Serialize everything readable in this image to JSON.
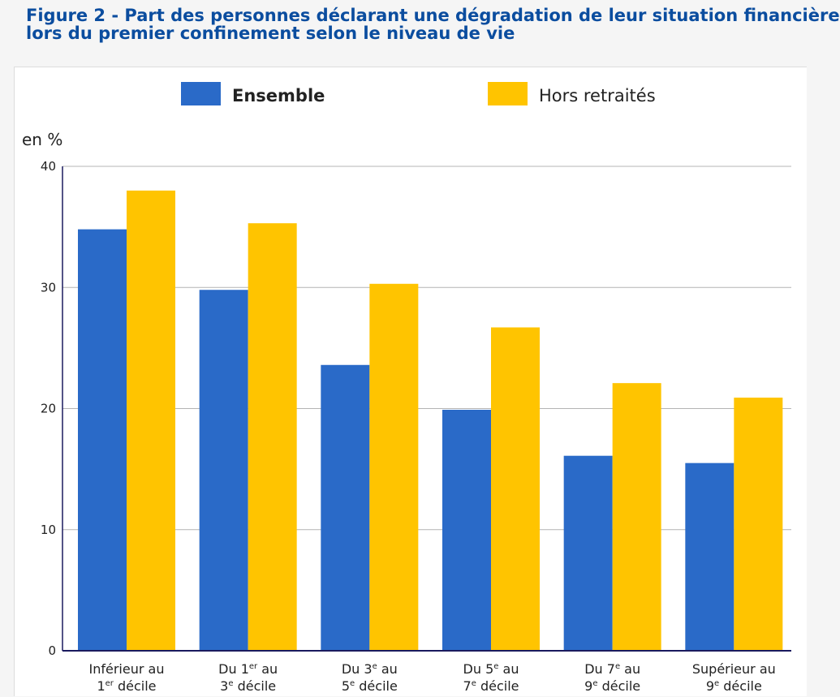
{
  "title": {
    "line1": "Figure 2 - Part des personnes déclarant une dégradation de leur situation financière",
    "line2": "lors du premier confinement selon le niveau de vie"
  },
  "colors": {
    "ensemble": "#2a6ac8",
    "hors_retraites": "#ffc400",
    "grid": "#b4b4b4",
    "axis": "#1a1a5e"
  },
  "chart_data": {
    "type": "bar",
    "ylabel": "en %",
    "ylim": [
      0,
      40
    ],
    "yticks": [
      "0",
      "10",
      "20",
      "30",
      "40"
    ],
    "grid": true,
    "legend_position": "top",
    "categories": [
      {
        "lines": [
          [
            {
              "t": "Inférieur au"
            }
          ],
          [
            {
              "t": "1"
            },
            {
              "t": "er",
              "sup": true
            },
            {
              "t": " décile"
            }
          ]
        ]
      },
      {
        "lines": [
          [
            {
              "t": "Du 1"
            },
            {
              "t": "er",
              "sup": true
            },
            {
              "t": " au"
            }
          ],
          [
            {
              "t": "3"
            },
            {
              "t": "e",
              "sup": true
            },
            {
              "t": " décile"
            }
          ]
        ]
      },
      {
        "lines": [
          [
            {
              "t": "Du 3"
            },
            {
              "t": "e",
              "sup": true
            },
            {
              "t": " au"
            }
          ],
          [
            {
              "t": "5"
            },
            {
              "t": "e",
              "sup": true
            },
            {
              "t": " décile"
            }
          ]
        ]
      },
      {
        "lines": [
          [
            {
              "t": "Du 5"
            },
            {
              "t": "e",
              "sup": true
            },
            {
              "t": " au"
            }
          ],
          [
            {
              "t": "7"
            },
            {
              "t": "e",
              "sup": true
            },
            {
              "t": " décile"
            }
          ]
        ]
      },
      {
        "lines": [
          [
            {
              "t": "Du 7"
            },
            {
              "t": "e",
              "sup": true
            },
            {
              "t": " au"
            }
          ],
          [
            {
              "t": "9"
            },
            {
              "t": "e",
              "sup": true
            },
            {
              "t": " décile"
            }
          ]
        ]
      },
      {
        "lines": [
          [
            {
              "t": "Supérieur au"
            }
          ],
          [
            {
              "t": "9"
            },
            {
              "t": "e",
              "sup": true
            },
            {
              "t": " décile"
            }
          ]
        ]
      }
    ],
    "series": [
      {
        "name": "Ensemble",
        "color_key": "ensemble",
        "bold": true,
        "values": [
          34.8,
          29.8,
          23.6,
          19.9,
          16.1,
          15.5
        ]
      },
      {
        "name": "Hors retraités",
        "color_key": "hors_retraites",
        "bold": false,
        "values": [
          38.0,
          35.3,
          30.3,
          26.7,
          22.1,
          20.9
        ]
      }
    ]
  }
}
